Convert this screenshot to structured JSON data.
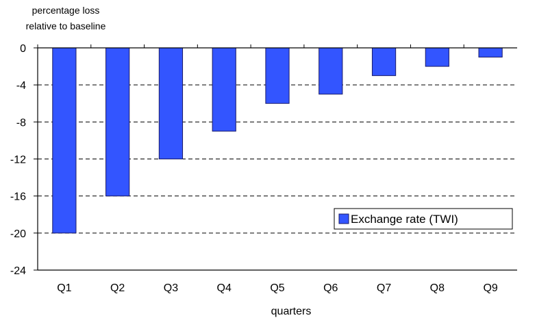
{
  "chart_data": {
    "type": "bar",
    "ylabel": [
      "percentage loss",
      "relative to baseline"
    ],
    "xlabel": "quarters",
    "categories": [
      "Q1",
      "Q2",
      "Q3",
      "Q4",
      "Q5",
      "Q6",
      "Q7",
      "Q8",
      "Q9"
    ],
    "series": [
      {
        "name": "Exchange rate (TWI)",
        "values": [
          -20,
          -16,
          -12,
          -9,
          -6,
          -5,
          -3,
          -2,
          -1
        ]
      }
    ],
    "ylim": [
      -24,
      0
    ],
    "yticks": [
      0,
      -4,
      -8,
      -12,
      -16,
      -20,
      -24
    ],
    "ytick_labels": [
      "0",
      "-4",
      "-8",
      "-12",
      "-16",
      "-20",
      "-24"
    ],
    "grid": "horizontal-dashed",
    "legend": "right",
    "colors": {
      "bar_fill": "#3355ff",
      "bar_stroke": "#1a1a66",
      "axis": "#000000",
      "grid": "#000000"
    }
  }
}
